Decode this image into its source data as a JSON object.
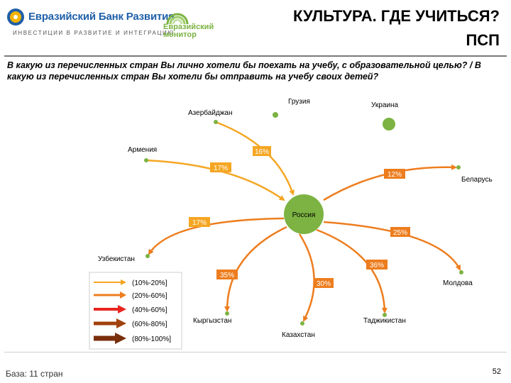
{
  "header": {
    "bank_name": "Евразийский Банк Развития",
    "bank_tagline": "ИНВЕСТИЦИИ В РАЗВИТИЕ И ИНТЕГРАЦИЮ",
    "monitor_line1": "Евразийский",
    "monitor_line2": "монитор",
    "title_line1": "КУЛЬТУРА. ГДЕ УЧИТЬСЯ?",
    "title_line2": "ПСП"
  },
  "question": "В какую из перечисленных стран Вы лично хотели бы поехать на учебу, с образовательной целью? / В какую из перечисленных стран Вы хотели бы отправить на учебу своих детей?",
  "diagram": {
    "center": "Россия",
    "colors": {
      "c10_20": "#f5a623",
      "c20_60": "#ed7d1e",
      "c40_60": "#e8251e",
      "c60_80": "#a0410d",
      "c80_100": "#7a2e0b",
      "node": "#7cb342"
    },
    "countries": {
      "georgia": "Грузия",
      "ukraine": "Украина",
      "azerbaijan": "Азербайджан",
      "armenia": "Армения",
      "belarus": "Беларусь",
      "uzbekistan": "Узбекистан",
      "moldova": "Молдова",
      "kyrgyzstan": "Кыргызстан",
      "kazakhstan": "Казахстан",
      "tajikistan": "Таджикистан"
    },
    "percentages": {
      "azerbaijan": "16%",
      "armenia": "17%",
      "belarus": "12%",
      "uzbekistan": "17%",
      "moldova": "25%",
      "tajikistan": "36%",
      "kyrgyzstan": "35%",
      "kazakhstan": "30%"
    }
  },
  "legend": {
    "items": [
      {
        "label": "(10%-20%]",
        "color": "#f5a623"
      },
      {
        "label": "(20%-60%]",
        "color": "#ed7d1e"
      },
      {
        "label": "(40%-60%]",
        "color": "#e8251e"
      },
      {
        "label": "(60%-80%]",
        "color": "#a0410d"
      },
      {
        "label": "(80%-100%]",
        "color": "#7a2e0b"
      }
    ]
  },
  "footer": {
    "base": "База: 11 стран",
    "page": "52"
  }
}
